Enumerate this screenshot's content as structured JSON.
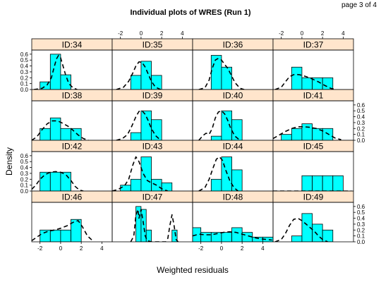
{
  "page": {
    "label": "page 3 of 4"
  },
  "chart_data": {
    "type": "histogram",
    "title": "Individual plots of WRES (Run 1)",
    "xlabel": "Weighted residuals",
    "ylabel": "Density",
    "xlim": [
      -2.8,
      5.0
    ],
    "ylim": [
      0,
      0.67
    ],
    "x_ticks": [
      -2,
      0,
      2,
      4
    ],
    "y_ticks": [
      0.0,
      0.1,
      0.2,
      0.3,
      0.4,
      0.5,
      0.6
    ],
    "colors": {
      "bar_fill": "#00FFFF",
      "strip": "#FFE5CC",
      "density_line": "#000000"
    },
    "layout": {
      "columns": 4,
      "rows": 4,
      "row_order": "top-to-bottom"
    },
    "panels": [
      {
        "id": "ID:34",
        "bar_start": -2.0,
        "bar_width": 1.0,
        "heights": [
          0.13,
          0.6,
          0.25
        ],
        "density": [
          [
            -2.6,
            0.0
          ],
          [
            -1.8,
            0.02
          ],
          [
            -1.3,
            0.08
          ],
          [
            -0.9,
            0.2
          ],
          [
            -0.6,
            0.4
          ],
          [
            -0.4,
            0.52
          ],
          [
            -0.2,
            0.58
          ],
          [
            0.0,
            0.54
          ],
          [
            0.2,
            0.42
          ],
          [
            0.5,
            0.24
          ],
          [
            0.8,
            0.1
          ],
          [
            1.2,
            0.03
          ],
          [
            1.6,
            0.0
          ]
        ]
      },
      {
        "id": "ID:35",
        "bar_start": -1.0,
        "bar_width": 1.0,
        "heights": [
          0.24,
          0.48,
          0.24
        ],
        "density": [
          [
            -2.4,
            0.0
          ],
          [
            -1.7,
            0.04
          ],
          [
            -1.2,
            0.14
          ],
          [
            -0.8,
            0.28
          ],
          [
            -0.5,
            0.4
          ],
          [
            -0.2,
            0.47
          ],
          [
            0.1,
            0.46
          ],
          [
            0.4,
            0.38
          ],
          [
            0.7,
            0.26
          ],
          [
            1.0,
            0.14
          ],
          [
            1.4,
            0.04
          ],
          [
            1.9,
            0.0
          ]
        ]
      },
      {
        "id": "ID:36",
        "bar_start": -1.0,
        "bar_width": 1.0,
        "heights": [
          0.58,
          0.38
        ],
        "density": [
          [
            -2.2,
            0.0
          ],
          [
            -1.6,
            0.03
          ],
          [
            -1.2,
            0.16
          ],
          [
            -0.9,
            0.36
          ],
          [
            -0.6,
            0.5
          ],
          [
            -0.3,
            0.53
          ],
          [
            0.0,
            0.5
          ],
          [
            0.3,
            0.43
          ],
          [
            0.6,
            0.36
          ],
          [
            0.9,
            0.26
          ],
          [
            1.3,
            0.12
          ],
          [
            1.8,
            0.02
          ],
          [
            2.2,
            0.0
          ]
        ]
      },
      {
        "id": "ID:37",
        "bar_start": -1.0,
        "bar_width": 1.0,
        "heights": [
          0.38,
          0.2,
          0.2,
          0.2
        ],
        "density": [
          [
            -2.6,
            0.0
          ],
          [
            -2.0,
            0.04
          ],
          [
            -1.6,
            0.13
          ],
          [
            -1.2,
            0.22
          ],
          [
            -0.7,
            0.26
          ],
          [
            -0.2,
            0.25
          ],
          [
            0.4,
            0.22
          ],
          [
            1.0,
            0.18
          ],
          [
            1.6,
            0.13
          ],
          [
            2.2,
            0.07
          ],
          [
            2.8,
            0.02
          ],
          [
            3.3,
            0.0
          ]
        ]
      },
      {
        "id": "ID:38",
        "bar_start": -2.0,
        "bar_width": 1.0,
        "heights": [
          0.2,
          0.38,
          0.2,
          0.2
        ],
        "density": [
          [
            -2.8,
            0.0
          ],
          [
            -2.3,
            0.06
          ],
          [
            -1.8,
            0.18
          ],
          [
            -1.3,
            0.28
          ],
          [
            -0.8,
            0.33
          ],
          [
            -0.3,
            0.33
          ],
          [
            0.2,
            0.29
          ],
          [
            0.7,
            0.24
          ],
          [
            1.2,
            0.17
          ],
          [
            1.7,
            0.09
          ],
          [
            2.2,
            0.03
          ],
          [
            2.7,
            0.0
          ]
        ]
      },
      {
        "id": "ID:39",
        "bar_start": -1.0,
        "bar_width": 1.0,
        "heights": [
          0.13,
          0.5,
          0.35
        ],
        "density": [
          [
            -2.4,
            0.0
          ],
          [
            -1.8,
            0.03
          ],
          [
            -1.3,
            0.1
          ],
          [
            -0.9,
            0.24
          ],
          [
            -0.5,
            0.4
          ],
          [
            -0.2,
            0.49
          ],
          [
            0.1,
            0.5
          ],
          [
            0.4,
            0.44
          ],
          [
            0.7,
            0.33
          ],
          [
            1.0,
            0.2
          ],
          [
            1.4,
            0.08
          ],
          [
            1.9,
            0.0
          ]
        ]
      },
      {
        "id": "ID:40",
        "bar_start": -1.0,
        "bar_width": 1.0,
        "heights": [
          0.07,
          0.5,
          0.35
        ],
        "density": [
          [
            -2.2,
            0.0
          ],
          [
            -1.8,
            0.08
          ],
          [
            -1.5,
            0.12
          ],
          [
            -1.2,
            0.1
          ],
          [
            -0.9,
            0.2
          ],
          [
            -0.6,
            0.38
          ],
          [
            -0.3,
            0.48
          ],
          [
            0.0,
            0.5
          ],
          [
            0.3,
            0.45
          ],
          [
            0.6,
            0.34
          ],
          [
            0.9,
            0.2
          ],
          [
            1.3,
            0.07
          ],
          [
            1.8,
            0.0
          ]
        ]
      },
      {
        "id": "ID:41",
        "bar_start": -2.0,
        "bar_width": 1.0,
        "heights": [
          0.1,
          0.2,
          0.28,
          0.2,
          0.2
        ],
        "density": [
          [
            -2.8,
            0.03
          ],
          [
            -2.2,
            0.09
          ],
          [
            -1.6,
            0.15
          ],
          [
            -1.0,
            0.2
          ],
          [
            -0.4,
            0.23
          ],
          [
            0.2,
            0.23
          ],
          [
            0.8,
            0.22
          ],
          [
            1.4,
            0.2
          ],
          [
            2.0,
            0.16
          ],
          [
            2.6,
            0.1
          ],
          [
            3.2,
            0.04
          ],
          [
            3.8,
            0.01
          ]
        ]
      },
      {
        "id": "ID:42",
        "bar_start": -2.0,
        "bar_width": 1.0,
        "heights": [
          0.32,
          0.32,
          0.32
        ],
        "density": [
          [
            -2.8,
            0.03
          ],
          [
            -2.4,
            0.1
          ],
          [
            -2.0,
            0.2
          ],
          [
            -1.5,
            0.28
          ],
          [
            -1.0,
            0.32
          ],
          [
            -0.5,
            0.33
          ],
          [
            0.0,
            0.32
          ],
          [
            0.5,
            0.28
          ],
          [
            1.0,
            0.18
          ],
          [
            1.4,
            0.08
          ],
          [
            1.8,
            0.02
          ],
          [
            2.2,
            0.0
          ]
        ]
      },
      {
        "id": "ID:43",
        "bar_start": -2.0,
        "bar_width": 1.0,
        "heights": [
          0.1,
          0.2,
          0.58,
          0.2,
          0.14
        ],
        "density": [
          [
            -2.8,
            0.0
          ],
          [
            -2.2,
            0.03
          ],
          [
            -1.6,
            0.09
          ],
          [
            -1.2,
            0.2
          ],
          [
            -0.8,
            0.44
          ],
          [
            -0.5,
            0.58
          ],
          [
            -0.2,
            0.5
          ],
          [
            0.2,
            0.3
          ],
          [
            0.6,
            0.18
          ],
          [
            1.0,
            0.14
          ],
          [
            1.5,
            0.1
          ],
          [
            2.0,
            0.04
          ],
          [
            2.6,
            0.0
          ]
        ]
      },
      {
        "id": "ID:44",
        "bar_start": -1.0,
        "bar_width": 1.0,
        "heights": [
          0.2,
          0.58,
          0.36
        ],
        "density": [
          [
            -2.2,
            0.0
          ],
          [
            -1.6,
            0.06
          ],
          [
            -1.2,
            0.2
          ],
          [
            -0.8,
            0.4
          ],
          [
            -0.5,
            0.54
          ],
          [
            -0.2,
            0.58
          ],
          [
            0.1,
            0.52
          ],
          [
            0.4,
            0.36
          ],
          [
            0.8,
            0.18
          ],
          [
            1.2,
            0.06
          ],
          [
            1.6,
            0.0
          ]
        ]
      },
      {
        "id": "ID:45",
        "bar_start": 0.0,
        "bar_width": 1.0,
        "heights": [
          0.26,
          0.26,
          0.26,
          0.26
        ],
        "density": [
          [
            -2.8,
            0.0
          ],
          [
            4.8,
            0.0
          ]
        ]
      },
      {
        "id": "ID:46",
        "bar_start": -2.0,
        "bar_width": 1.0,
        "heights": [
          0.2,
          0.2,
          0.2,
          0.38
        ],
        "density": [
          [
            -2.8,
            0.02
          ],
          [
            -2.3,
            0.08
          ],
          [
            -1.8,
            0.14
          ],
          [
            -1.2,
            0.18
          ],
          [
            -0.6,
            0.2
          ],
          [
            0.0,
            0.23
          ],
          [
            0.6,
            0.27
          ],
          [
            1.2,
            0.33
          ],
          [
            1.7,
            0.36
          ],
          [
            2.1,
            0.26
          ],
          [
            2.6,
            0.1
          ],
          [
            3.1,
            0.02
          ]
        ]
      },
      {
        "id": "ID:47",
        "bar_start": -0.5,
        "bar_width": 0.5,
        "heights": [
          0.6,
          0.55,
          0.2,
          0.0,
          0.0,
          0.0,
          0.0,
          0.2
        ],
        "density": [
          [
            -1.0,
            0.0
          ],
          [
            -0.7,
            0.1
          ],
          [
            -0.5,
            0.45
          ],
          [
            -0.3,
            0.55
          ],
          [
            -0.2,
            0.4
          ],
          [
            0.0,
            0.55
          ],
          [
            0.2,
            0.35
          ],
          [
            0.4,
            0.1
          ],
          [
            0.6,
            0.02
          ],
          [
            1.0,
            0.0
          ],
          [
            2.4,
            0.0
          ],
          [
            2.6,
            0.06
          ],
          [
            2.8,
            0.28
          ],
          [
            3.0,
            0.46
          ],
          [
            3.2,
            0.28
          ],
          [
            3.4,
            0.04
          ],
          [
            3.6,
            0.0
          ]
        ]
      },
      {
        "id": "ID:48",
        "bar_start": -3.0,
        "bar_width": 1.0,
        "heights": [
          0.24,
          0.16,
          0.16,
          0.16,
          0.24,
          0.16,
          0.08,
          0.08
        ],
        "density": [
          [
            -2.8,
            0.1
          ],
          [
            -2.2,
            0.13
          ],
          [
            -1.6,
            0.12
          ],
          [
            -1.0,
            0.12
          ],
          [
            -0.4,
            0.14
          ],
          [
            0.2,
            0.16
          ],
          [
            0.8,
            0.17
          ],
          [
            1.4,
            0.16
          ],
          [
            2.0,
            0.13
          ],
          [
            2.6,
            0.1
          ],
          [
            3.2,
            0.07
          ],
          [
            3.8,
            0.05
          ],
          [
            4.4,
            0.04
          ],
          [
            4.9,
            0.03
          ]
        ]
      },
      {
        "id": "ID:49",
        "bar_start": -1.0,
        "bar_width": 1.0,
        "heights": [
          0.1,
          0.48,
          0.3,
          0.2
        ],
        "density": [
          [
            -2.6,
            0.0
          ],
          [
            -2.0,
            0.04
          ],
          [
            -1.6,
            0.14
          ],
          [
            -1.2,
            0.28
          ],
          [
            -0.8,
            0.38
          ],
          [
            -0.4,
            0.4
          ],
          [
            0.0,
            0.36
          ],
          [
            0.4,
            0.3
          ],
          [
            0.8,
            0.24
          ],
          [
            1.2,
            0.18
          ],
          [
            1.6,
            0.1
          ],
          [
            2.0,
            0.04
          ],
          [
            2.5,
            0.0
          ]
        ]
      }
    ]
  }
}
